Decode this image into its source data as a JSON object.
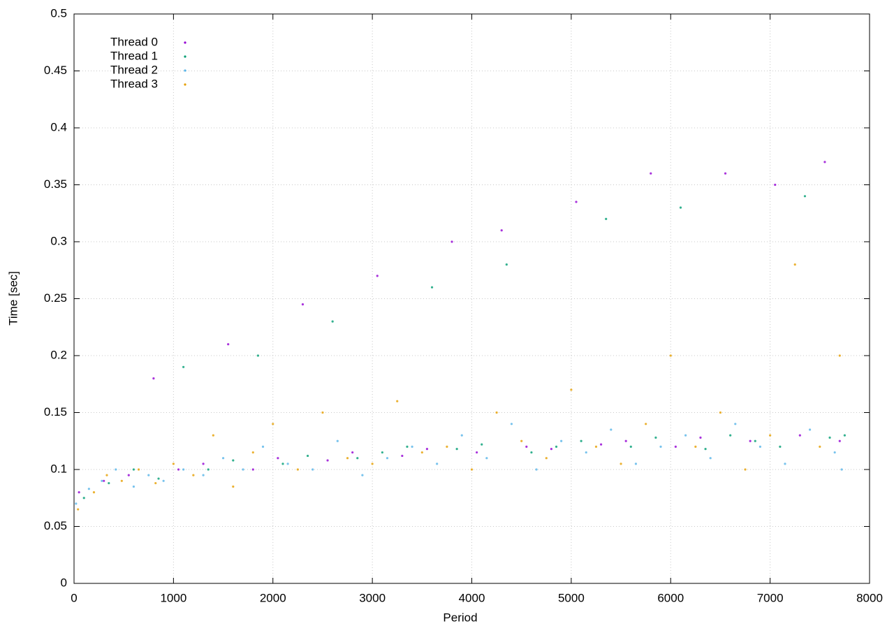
{
  "chart_data": {
    "type": "scatter",
    "xlabel": "Period",
    "ylabel": "Time [sec]",
    "xlim": [
      0,
      8000
    ],
    "xticks": [
      0,
      1000,
      2000,
      3000,
      4000,
      5000,
      6000,
      7000,
      8000
    ],
    "ylim": [
      0,
      0.5
    ],
    "yticks": [
      0,
      0.05,
      0.1,
      0.15,
      0.2,
      0.25,
      0.3,
      0.35,
      0.4,
      0.45,
      0.5
    ],
    "grid": true,
    "legend": "top-left",
    "series": [
      {
        "name": "Thread 0",
        "color": "#9400d3",
        "x": [
          50,
          300,
          550,
          800,
          1050,
          1300,
          1550,
          1800,
          2050,
          2300,
          2550,
          2800,
          3050,
          3300,
          3550,
          3800,
          4050,
          4300,
          4550,
          4800,
          5050,
          5300,
          5550,
          5800,
          6050,
          6300,
          6550,
          6800,
          7050,
          7300,
          7550,
          7700
        ],
        "values": [
          0.08,
          0.09,
          0.095,
          0.18,
          0.1,
          0.105,
          0.21,
          0.1,
          0.11,
          0.245,
          0.108,
          0.115,
          0.27,
          0.112,
          0.118,
          0.3,
          0.115,
          0.31,
          0.12,
          0.118,
          0.335,
          0.122,
          0.125,
          0.36,
          0.12,
          0.128,
          0.36,
          0.125,
          0.35,
          0.13,
          0.37,
          0.125
        ]
      },
      {
        "name": "Thread 1",
        "color": "#009e73",
        "x": [
          100,
          350,
          600,
          850,
          1100,
          1350,
          1600,
          1850,
          2100,
          2350,
          2600,
          2850,
          3100,
          3350,
          3600,
          3850,
          4100,
          4350,
          4600,
          4850,
          5100,
          5350,
          5600,
          5850,
          6100,
          6350,
          6600,
          6850,
          7100,
          7350,
          7600,
          7750
        ],
        "values": [
          0.075,
          0.088,
          0.1,
          0.092,
          0.19,
          0.1,
          0.108,
          0.2,
          0.105,
          0.112,
          0.23,
          0.11,
          0.115,
          0.12,
          0.26,
          0.118,
          0.122,
          0.28,
          0.115,
          0.12,
          0.125,
          0.32,
          0.12,
          0.128,
          0.33,
          0.118,
          0.13,
          0.125,
          0.12,
          0.34,
          0.128,
          0.13
        ]
      },
      {
        "name": "Thread 2",
        "color": "#56b4e9",
        "x": [
          20,
          150,
          280,
          420,
          600,
          750,
          900,
          1100,
          1300,
          1500,
          1700,
          1900,
          2150,
          2400,
          2650,
          2900,
          3150,
          3400,
          3650,
          3900,
          4150,
          4400,
          4650,
          4900,
          5150,
          5400,
          5650,
          5900,
          6150,
          6400,
          6650,
          6900,
          7150,
          7400,
          7650,
          7720
        ],
        "values": [
          0.07,
          0.083,
          0.09,
          0.1,
          0.085,
          0.095,
          0.09,
          0.1,
          0.095,
          0.11,
          0.1,
          0.12,
          0.105,
          0.1,
          0.125,
          0.095,
          0.11,
          0.12,
          0.105,
          0.13,
          0.11,
          0.14,
          0.1,
          0.125,
          0.115,
          0.135,
          0.105,
          0.12,
          0.13,
          0.11,
          0.14,
          0.12,
          0.105,
          0.135,
          0.115,
          0.1
        ]
      },
      {
        "name": "Thread 3",
        "color": "#e69f00",
        "x": [
          40,
          200,
          330,
          480,
          650,
          820,
          1000,
          1200,
          1400,
          1600,
          1800,
          2000,
          2250,
          2500,
          2750,
          3000,
          3250,
          3500,
          3750,
          4000,
          4250,
          4500,
          4750,
          5000,
          5250,
          5500,
          5750,
          6000,
          6250,
          6500,
          6750,
          7000,
          7250,
          7500,
          7700
        ],
        "values": [
          0.065,
          0.08,
          0.095,
          0.09,
          0.1,
          0.088,
          0.105,
          0.095,
          0.13,
          0.085,
          0.115,
          0.14,
          0.1,
          0.15,
          0.11,
          0.105,
          0.16,
          0.115,
          0.12,
          0.1,
          0.15,
          0.125,
          0.11,
          0.17,
          0.12,
          0.105,
          0.14,
          0.2,
          0.12,
          0.15,
          0.1,
          0.13,
          0.28,
          0.12,
          0.2
        ]
      }
    ]
  }
}
